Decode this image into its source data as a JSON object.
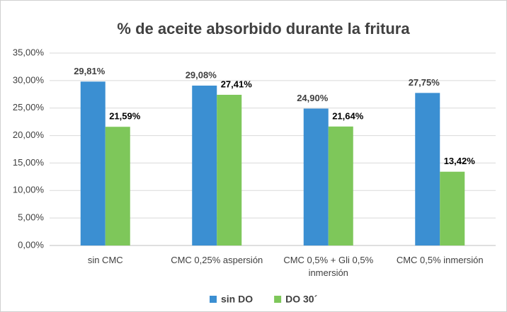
{
  "chart_data": {
    "type": "bar",
    "title": "% de aceite absorbido durante la fritura",
    "categories": [
      "sin CMC",
      "CMC 0,25% aspersión",
      "CMC 0,5% + Gli 0,5% inmersión",
      "CMC 0,5% inmersión"
    ],
    "series": [
      {
        "name": "sin DO",
        "color": "#3b8fd2",
        "values": [
          29.81,
          29.08,
          24.9,
          27.75
        ],
        "value_labels": [
          "29,81%",
          "29,08%",
          "24,90%",
          "27,75%"
        ]
      },
      {
        "name": "DO 30´",
        "color": "#7ec75a",
        "values": [
          21.59,
          27.41,
          21.64,
          13.42
        ],
        "value_labels": [
          "21,59%",
          "27,41%",
          "21,64%",
          "13,42%"
        ]
      }
    ],
    "ylim": [
      0,
      35
    ],
    "yticks": [
      {
        "value": 0,
        "label": "0,00%"
      },
      {
        "value": 5,
        "label": "5,00%"
      },
      {
        "value": 10,
        "label": "10,00%"
      },
      {
        "value": 15,
        "label": "15,00%"
      },
      {
        "value": 20,
        "label": "20,00%"
      },
      {
        "value": 25,
        "label": "25,00%"
      },
      {
        "value": 30,
        "label": "30,00%"
      },
      {
        "value": 35,
        "label": "35,00%"
      }
    ],
    "grid": true,
    "legend": "bottom"
  }
}
